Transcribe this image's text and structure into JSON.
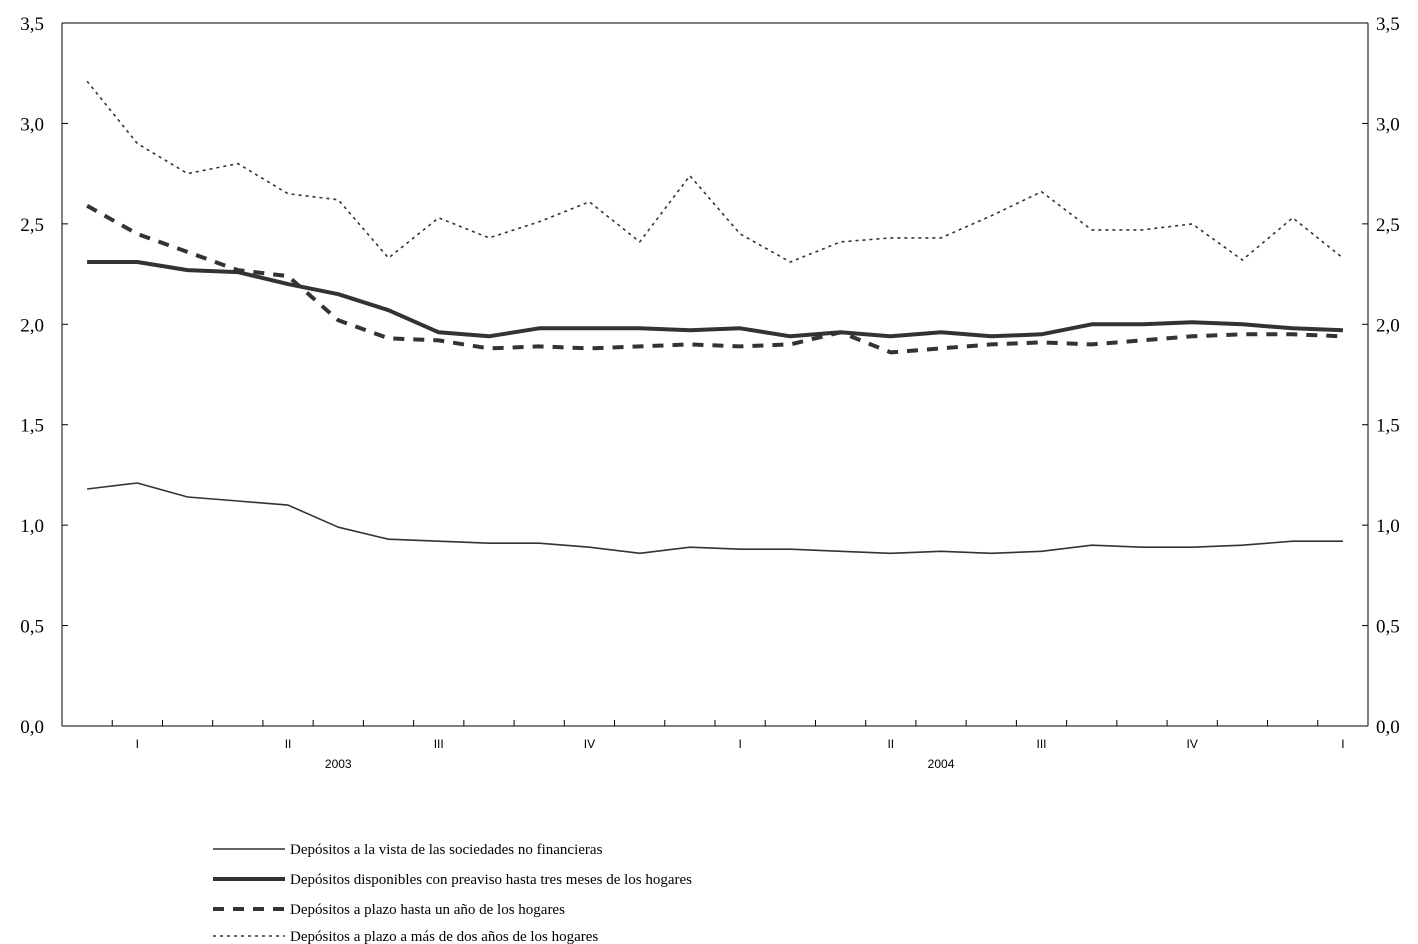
{
  "chart_data": {
    "type": "line",
    "title": "",
    "xlabel": "",
    "ylabel": "",
    "ylim": [
      0,
      3.5
    ],
    "yticks": [
      "0,0",
      "0,5",
      "1,0",
      "1,5",
      "2,0",
      "2,5",
      "3,0",
      "3,5"
    ],
    "grid": false,
    "legend_position": "bottom",
    "quarter_labels": [
      "I",
      "II",
      "III",
      "IV",
      "I",
      "II",
      "III",
      "IV",
      "I"
    ],
    "year_labels": [
      "2003",
      "2004"
    ],
    "x": [
      "2003-01",
      "2003-02",
      "2003-03",
      "2003-04",
      "2003-05",
      "2003-06",
      "2003-07",
      "2003-08",
      "2003-09",
      "2003-10",
      "2003-11",
      "2003-12",
      "2004-01",
      "2004-02",
      "2004-03",
      "2004-04",
      "2004-05",
      "2004-06",
      "2004-07",
      "2004-08",
      "2004-09",
      "2004-10",
      "2004-11",
      "2004-12",
      "2005-01",
      "2005-02"
    ],
    "series": [
      {
        "name": "Depósitos a la vista de las sociedades no financieras",
        "style": "thin-solid",
        "values": [
          1.18,
          1.21,
          1.14,
          1.12,
          1.1,
          0.99,
          0.93,
          0.92,
          0.91,
          0.91,
          0.89,
          0.86,
          0.89,
          0.88,
          0.88,
          0.87,
          0.86,
          0.87,
          0.86,
          0.87,
          0.9,
          0.89,
          0.89,
          0.9,
          0.92,
          0.92
        ]
      },
      {
        "name": "Depósitos disponibles con preaviso hasta tres meses de los hogares",
        "style": "thick-solid",
        "values": [
          2.31,
          2.31,
          2.27,
          2.26,
          2.2,
          2.15,
          2.07,
          1.96,
          1.94,
          1.98,
          1.98,
          1.98,
          1.97,
          1.98,
          1.94,
          1.96,
          1.94,
          1.96,
          1.94,
          1.95,
          2.0,
          2.0,
          2.01,
          2.0,
          1.98,
          1.97
        ]
      },
      {
        "name": "Depósitos a plazo hasta un año de los hogares",
        "style": "dashed",
        "values": [
          2.59,
          2.45,
          2.36,
          2.27,
          2.24,
          2.02,
          1.93,
          1.92,
          1.88,
          1.89,
          1.88,
          1.89,
          1.9,
          1.89,
          1.9,
          1.96,
          1.86,
          1.88,
          1.9,
          1.91,
          1.9,
          1.92,
          1.94,
          1.95,
          1.95,
          1.94
        ]
      },
      {
        "name": "Depósitos a plazo a más de dos años de los hogares",
        "style": "dotted",
        "values": [
          3.21,
          2.9,
          2.75,
          2.8,
          2.65,
          2.62,
          2.33,
          2.53,
          2.43,
          2.51,
          2.61,
          2.41,
          2.74,
          2.45,
          2.31,
          2.41,
          2.43,
          2.43,
          2.54,
          2.66,
          2.47,
          2.47,
          2.5,
          2.32,
          2.53,
          2.33
        ]
      }
    ]
  }
}
